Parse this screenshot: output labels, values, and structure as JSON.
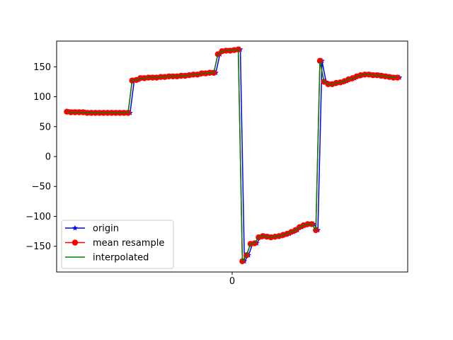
{
  "chart_data": {
    "type": "line",
    "x_ticks": [
      "0"
    ],
    "y_ticks": [
      -150,
      -100,
      -50,
      0,
      50,
      100,
      150
    ],
    "ylim": [
      -193,
      193
    ],
    "xlim": [
      -43,
      43
    ],
    "grid": false,
    "legend_position": "lower-left",
    "series": [
      {
        "name": "origin",
        "color": "#0000ff",
        "marker": "star",
        "points": [
          [
            -40,
            75
          ],
          [
            -39,
            74
          ],
          [
            -38,
            74
          ],
          [
            -37,
            74
          ],
          [
            -36,
            74
          ],
          [
            -35,
            73
          ],
          [
            -34,
            73
          ],
          [
            -33,
            73
          ],
          [
            -32,
            73
          ],
          [
            -31,
            73
          ],
          [
            -30,
            73
          ],
          [
            -29,
            73
          ],
          [
            -28,
            73
          ],
          [
            -27,
            73
          ],
          [
            -26,
            73
          ],
          [
            -25,
            73
          ],
          [
            -24,
            127
          ],
          [
            -23,
            128
          ],
          [
            -22,
            131
          ],
          [
            -21,
            131
          ],
          [
            -20,
            132
          ],
          [
            -19,
            132
          ],
          [
            -18,
            132
          ],
          [
            -17,
            133
          ],
          [
            -16,
            133
          ],
          [
            -15,
            134
          ],
          [
            -14,
            134
          ],
          [
            -13,
            134
          ],
          [
            -12,
            135
          ],
          [
            -11,
            135
          ],
          [
            -10,
            136
          ],
          [
            -9,
            137
          ],
          [
            -8,
            137
          ],
          [
            -7,
            139
          ],
          [
            -6,
            139
          ],
          [
            -5,
            140
          ],
          [
            -4,
            140
          ],
          [
            -3,
            171
          ],
          [
            -2,
            176
          ],
          [
            -1,
            177
          ],
          [
            0,
            177
          ],
          [
            1,
            178
          ],
          [
            2,
            179
          ],
          [
            3,
            -175
          ],
          [
            4,
            -165
          ],
          [
            5,
            -146
          ],
          [
            6,
            -145
          ],
          [
            7,
            -135
          ],
          [
            8,
            -133
          ],
          [
            9,
            -134
          ],
          [
            10,
            -135
          ],
          [
            11,
            -134
          ],
          [
            12,
            -133
          ],
          [
            13,
            -131
          ],
          [
            14,
            -129
          ],
          [
            15,
            -126
          ],
          [
            16,
            -123
          ],
          [
            17,
            -118
          ],
          [
            18,
            -115
          ],
          [
            19,
            -113
          ],
          [
            20,
            -113
          ],
          [
            21,
            -123
          ],
          [
            22,
            160
          ],
          [
            23,
            125
          ],
          [
            24,
            121
          ],
          [
            25,
            121
          ],
          [
            26,
            123
          ],
          [
            27,
            124
          ],
          [
            28,
            126
          ],
          [
            29,
            129
          ],
          [
            30,
            131
          ],
          [
            31,
            134
          ],
          [
            32,
            136
          ],
          [
            33,
            137
          ],
          [
            34,
            137
          ],
          [
            35,
            136
          ],
          [
            36,
            136
          ],
          [
            37,
            135
          ],
          [
            38,
            134
          ],
          [
            39,
            133
          ],
          [
            40,
            132
          ],
          [
            41,
            132
          ]
        ]
      },
      {
        "name": "mean resample",
        "color": "#ff0000",
        "marker": "circle",
        "points": [
          [
            -40.5,
            75
          ],
          [
            -39.5,
            74
          ],
          [
            -38.5,
            74
          ],
          [
            -37.5,
            74
          ],
          [
            -36.5,
            74
          ],
          [
            -35.5,
            73
          ],
          [
            -34.5,
            73
          ],
          [
            -33.5,
            73
          ],
          [
            -32.5,
            73
          ],
          [
            -31.5,
            73
          ],
          [
            -30.5,
            73
          ],
          [
            -29.5,
            73
          ],
          [
            -28.5,
            73
          ],
          [
            -27.5,
            73
          ],
          [
            -26.5,
            73
          ],
          [
            -25.5,
            73
          ],
          [
            -24.5,
            127
          ],
          [
            -23.5,
            128
          ],
          [
            -22.5,
            131
          ],
          [
            -21.5,
            131
          ],
          [
            -20.5,
            132
          ],
          [
            -19.5,
            132
          ],
          [
            -18.5,
            132
          ],
          [
            -17.5,
            133
          ],
          [
            -16.5,
            133
          ],
          [
            -15.5,
            134
          ],
          [
            -14.5,
            134
          ],
          [
            -13.5,
            134
          ],
          [
            -12.5,
            135
          ],
          [
            -11.5,
            135
          ],
          [
            -10.5,
            136
          ],
          [
            -9.5,
            137
          ],
          [
            -8.5,
            137
          ],
          [
            -7.5,
            139
          ],
          [
            -6.5,
            139
          ],
          [
            -5.5,
            140
          ],
          [
            -4.5,
            140
          ],
          [
            -3.5,
            171
          ],
          [
            -2.5,
            176
          ],
          [
            -1.5,
            177
          ],
          [
            -0.5,
            177
          ],
          [
            0.5,
            178
          ],
          [
            1.5,
            179
          ],
          [
            2.5,
            -175
          ],
          [
            3.5,
            -165
          ],
          [
            4.5,
            -146
          ],
          [
            5.5,
            -145
          ],
          [
            6.5,
            -135
          ],
          [
            7.5,
            -133
          ],
          [
            8.5,
            -134
          ],
          [
            9.5,
            -135
          ],
          [
            10.5,
            -134
          ],
          [
            11.5,
            -133
          ],
          [
            12.5,
            -131
          ],
          [
            13.5,
            -129
          ],
          [
            14.5,
            -126
          ],
          [
            15.5,
            -123
          ],
          [
            16.5,
            -118
          ],
          [
            17.5,
            -115
          ],
          [
            18.5,
            -113
          ],
          [
            19.5,
            -113
          ],
          [
            20.5,
            -123
          ],
          [
            21.5,
            160
          ],
          [
            22.5,
            125
          ],
          [
            23.5,
            121
          ],
          [
            24.5,
            121
          ],
          [
            25.5,
            123
          ],
          [
            26.5,
            124
          ],
          [
            27.5,
            126
          ],
          [
            28.5,
            129
          ],
          [
            29.5,
            131
          ],
          [
            30.5,
            134
          ],
          [
            31.5,
            136
          ],
          [
            32.5,
            137
          ],
          [
            33.5,
            137
          ],
          [
            34.5,
            136
          ],
          [
            35.5,
            136
          ],
          [
            36.5,
            135
          ],
          [
            37.5,
            134
          ],
          [
            38.5,
            133
          ],
          [
            39.5,
            132
          ],
          [
            40.5,
            132
          ]
        ]
      },
      {
        "name": "interpolated",
        "color": "#008000",
        "marker": "none",
        "points": [
          [
            -40.5,
            75
          ],
          [
            -39.5,
            74
          ],
          [
            -38.5,
            74
          ],
          [
            -37.5,
            74
          ],
          [
            -36.5,
            74
          ],
          [
            -35.5,
            73
          ],
          [
            -34.5,
            73
          ],
          [
            -33.5,
            73
          ],
          [
            -32.5,
            73
          ],
          [
            -31.5,
            73
          ],
          [
            -30.5,
            73
          ],
          [
            -29.5,
            73
          ],
          [
            -28.5,
            73
          ],
          [
            -27.5,
            73
          ],
          [
            -26.5,
            73
          ],
          [
            -25.5,
            73
          ],
          [
            -24.5,
            127
          ],
          [
            -23.5,
            128
          ],
          [
            -22.5,
            131
          ],
          [
            -21.5,
            131
          ],
          [
            -20.5,
            132
          ],
          [
            -19.5,
            132
          ],
          [
            -18.5,
            132
          ],
          [
            -17.5,
            133
          ],
          [
            -16.5,
            133
          ],
          [
            -15.5,
            134
          ],
          [
            -14.5,
            134
          ],
          [
            -13.5,
            134
          ],
          [
            -12.5,
            135
          ],
          [
            -11.5,
            135
          ],
          [
            -10.5,
            136
          ],
          [
            -9.5,
            137
          ],
          [
            -8.5,
            137
          ],
          [
            -7.5,
            139
          ],
          [
            -6.5,
            139
          ],
          [
            -5.5,
            140
          ],
          [
            -4.5,
            140
          ],
          [
            -3.5,
            171
          ],
          [
            -2.5,
            176
          ],
          [
            -1.5,
            177
          ],
          [
            -0.5,
            177
          ],
          [
            0.5,
            178
          ],
          [
            1.5,
            179
          ],
          [
            2.5,
            -175
          ],
          [
            3.5,
            -165
          ],
          [
            4.5,
            -146
          ],
          [
            5.5,
            -145
          ],
          [
            6.5,
            -135
          ],
          [
            7.5,
            -133
          ],
          [
            8.5,
            -134
          ],
          [
            9.5,
            -135
          ],
          [
            10.5,
            -134
          ],
          [
            11.5,
            -133
          ],
          [
            12.5,
            -131
          ],
          [
            13.5,
            -129
          ],
          [
            14.5,
            -126
          ],
          [
            15.5,
            -123
          ],
          [
            16.5,
            -118
          ],
          [
            17.5,
            -115
          ],
          [
            18.5,
            -113
          ],
          [
            19.5,
            -113
          ],
          [
            20.5,
            -123
          ],
          [
            21.5,
            160
          ],
          [
            22.5,
            125
          ],
          [
            23.5,
            121
          ],
          [
            24.5,
            121
          ],
          [
            25.5,
            123
          ],
          [
            26.5,
            124
          ],
          [
            27.5,
            126
          ],
          [
            28.5,
            129
          ],
          [
            29.5,
            131
          ],
          [
            30.5,
            134
          ],
          [
            31.5,
            136
          ],
          [
            32.5,
            137
          ],
          [
            33.5,
            137
          ],
          [
            34.5,
            136
          ],
          [
            35.5,
            136
          ],
          [
            36.5,
            135
          ],
          [
            37.5,
            134
          ],
          [
            38.5,
            133
          ],
          [
            39.5,
            132
          ],
          [
            40.5,
            132
          ]
        ]
      }
    ],
    "legend": [
      "origin",
      "mean resample",
      "interpolated"
    ]
  }
}
